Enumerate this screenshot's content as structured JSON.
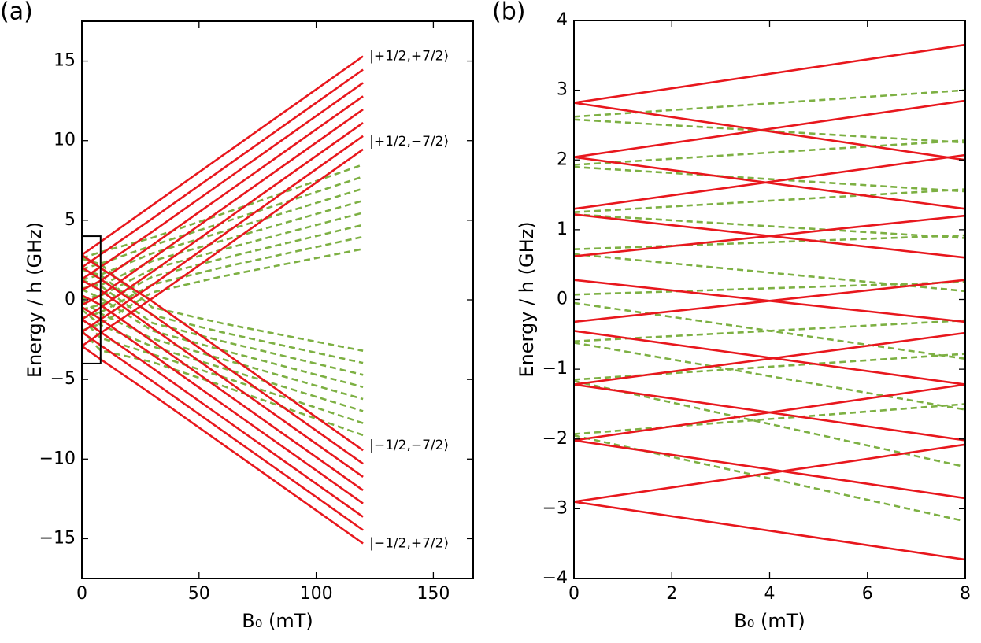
{
  "chart_data": [
    {
      "type": "line",
      "panel_label": "(a)",
      "x_label": "B₀ (mT)",
      "y_label": "Energy / h (GHz)",
      "xlim": [
        0,
        167
      ],
      "ylim": [
        -17.5,
        17.5
      ],
      "xticks": [
        0,
        50,
        100,
        150
      ],
      "yticks": [
        {
          "value": -15,
          "label": "−15"
        },
        {
          "value": -10,
          "label": "−10"
        },
        {
          "value": -5,
          "label": "−5"
        },
        0,
        5,
        10,
        15
      ],
      "inset": {
        "xlim": [
          0,
          8
        ],
        "ylim": [
          -4,
          4
        ]
      },
      "annotations": [
        "|+1/2,+7/2⟩",
        "|+1/2,−7/2⟩",
        "|−1/2,−7/2⟩",
        "|−1/2,+7/2⟩"
      ],
      "x": [
        0,
        8,
        30,
        60,
        120
      ],
      "series": [
        {
          "color": "#7db043",
          "style": "dashed",
          "values": [
            2.62,
            3.0,
            3.9,
            5.4,
            8.5
          ]
        },
        {
          "color": "#7db043",
          "style": "dashed",
          "values": [
            1.93,
            2.28,
            3.41,
            4.84,
            7.74
          ]
        },
        {
          "color": "#7db043",
          "style": "dashed",
          "values": [
            1.25,
            1.58,
            2.92,
            4.28,
            6.99
          ]
        },
        {
          "color": "#7db043",
          "style": "dashed",
          "values": [
            0.72,
            0.92,
            2.43,
            3.72,
            6.23
          ]
        },
        {
          "color": "#7db043",
          "style": "dashed",
          "values": [
            0.07,
            0.25,
            1.94,
            3.16,
            5.47
          ]
        },
        {
          "color": "#7db043",
          "style": "dashed",
          "values": [
            -0.6,
            -0.3,
            1.45,
            2.6,
            4.71
          ]
        },
        {
          "color": "#7db043",
          "style": "dashed",
          "values": [
            -1.15,
            -0.78,
            0.96,
            2.04,
            3.96
          ]
        },
        {
          "color": "#7db043",
          "style": "dashed",
          "values": [
            -1.93,
            -1.5,
            0.47,
            1.48,
            3.2
          ]
        },
        {
          "color": "#7db043",
          "style": "dashed",
          "values": [
            2.58,
            2.25,
            -0.47,
            -1.48,
            -3.2
          ]
        },
        {
          "color": "#7db043",
          "style": "dashed",
          "values": [
            1.9,
            1.55,
            -0.96,
            -2.04,
            -3.96
          ]
        },
        {
          "color": "#7db043",
          "style": "dashed",
          "values": [
            1.22,
            0.88,
            -1.45,
            -2.6,
            -4.71
          ]
        },
        {
          "color": "#7db043",
          "style": "dashed",
          "values": [
            0.65,
            0.12,
            -1.94,
            -3.16,
            -5.47
          ]
        },
        {
          "color": "#7db043",
          "style": "dashed",
          "values": [
            -0.05,
            -0.85,
            -2.43,
            -3.72,
            -6.23
          ]
        },
        {
          "color": "#7db043",
          "style": "dashed",
          "values": [
            -0.62,
            -1.58,
            -2.92,
            -4.28,
            -6.99
          ]
        },
        {
          "color": "#7db043",
          "style": "dashed",
          "values": [
            -1.17,
            -2.4,
            -3.41,
            -4.84,
            -7.74
          ]
        },
        {
          "color": "#7db043",
          "style": "dashed",
          "values": [
            -1.95,
            -3.18,
            -3.9,
            -5.4,
            -8.5
          ]
        },
        {
          "color": "#e8171d",
          "style": "solid",
          "values": [
            2.82,
            3.65,
            5.94,
            9.06,
            15.3
          ]
        },
        {
          "color": "#e8171d",
          "style": "solid",
          "values": [
            2.04,
            2.85,
            5.1,
            8.22,
            14.46
          ]
        },
        {
          "color": "#e8171d",
          "style": "solid",
          "values": [
            1.3,
            2.07,
            4.27,
            7.39,
            13.63
          ]
        },
        {
          "color": "#e8171d",
          "style": "solid",
          "values": [
            0.62,
            1.2,
            3.43,
            6.55,
            12.79
          ]
        },
        {
          "color": "#e8171d",
          "style": "solid",
          "values": [
            -0.32,
            0.28,
            2.6,
            5.72,
            11.96
          ]
        },
        {
          "color": "#e8171d",
          "style": "solid",
          "values": [
            -1.22,
            -0.48,
            1.76,
            4.88,
            11.12
          ]
        },
        {
          "color": "#e8171d",
          "style": "solid",
          "values": [
            -2.02,
            -1.22,
            0.93,
            4.05,
            10.29
          ]
        },
        {
          "color": "#e8171d",
          "style": "solid",
          "values": [
            -2.9,
            -2.08,
            0.09,
            3.21,
            9.45
          ]
        },
        {
          "color": "#e8171d",
          "style": "solid",
          "values": [
            2.82,
            2.0,
            -0.09,
            -3.21,
            -9.45
          ]
        },
        {
          "color": "#e8171d",
          "style": "solid",
          "values": [
            2.04,
            1.3,
            -0.93,
            -4.05,
            -10.29
          ]
        },
        {
          "color": "#e8171d",
          "style": "solid",
          "values": [
            1.22,
            0.6,
            -1.76,
            -4.88,
            -11.12
          ]
        },
        {
          "color": "#e8171d",
          "style": "solid",
          "values": [
            0.28,
            -0.32,
            -2.6,
            -5.72,
            -11.96
          ]
        },
        {
          "color": "#e8171d",
          "style": "solid",
          "values": [
            -0.45,
            -1.22,
            -3.43,
            -6.55,
            -12.79
          ]
        },
        {
          "color": "#e8171d",
          "style": "solid",
          "values": [
            -1.22,
            -2.02,
            -4.27,
            -7.39,
            -13.63
          ]
        },
        {
          "color": "#e8171d",
          "style": "solid",
          "values": [
            -2.02,
            -2.85,
            -5.1,
            -8.22,
            -14.46
          ]
        },
        {
          "color": "#e8171d",
          "style": "solid",
          "values": [
            -2.9,
            -3.73,
            -5.94,
            -9.06,
            -15.3
          ]
        }
      ]
    },
    {
      "type": "line",
      "panel_label": "(b)",
      "x_label": "B₀ (mT)",
      "y_label": "Energy / h (GHz)",
      "xlim": [
        0,
        8
      ],
      "ylim": [
        -4,
        4
      ],
      "xticks": [
        0,
        2,
        4,
        6,
        8
      ],
      "yticks": [
        {
          "value": -4,
          "label": "−4"
        },
        {
          "value": -3,
          "label": "−3"
        },
        {
          "value": -2,
          "label": "−2"
        },
        {
          "value": -1,
          "label": "−1"
        },
        0,
        1,
        2,
        3,
        4
      ],
      "x": [
        0,
        8
      ],
      "series": [
        {
          "color": "#7db043",
          "style": "dashed",
          "values": [
            2.62,
            3.0
          ]
        },
        {
          "color": "#7db043",
          "style": "dashed",
          "values": [
            1.93,
            2.28
          ]
        },
        {
          "color": "#7db043",
          "style": "dashed",
          "values": [
            1.25,
            1.58
          ]
        },
        {
          "color": "#7db043",
          "style": "dashed",
          "values": [
            0.72,
            0.92
          ]
        },
        {
          "color": "#7db043",
          "style": "dashed",
          "values": [
            0.07,
            0.25
          ]
        },
        {
          "color": "#7db043",
          "style": "dashed",
          "values": [
            -0.6,
            -0.3
          ]
        },
        {
          "color": "#7db043",
          "style": "dashed",
          "values": [
            -1.15,
            -0.78
          ]
        },
        {
          "color": "#7db043",
          "style": "dashed",
          "values": [
            -1.93,
            -1.5
          ]
        },
        {
          "color": "#7db043",
          "style": "dashed",
          "values": [
            2.58,
            2.25
          ]
        },
        {
          "color": "#7db043",
          "style": "dashed",
          "values": [
            1.9,
            1.55
          ]
        },
        {
          "color": "#7db043",
          "style": "dashed",
          "values": [
            1.22,
            0.88
          ]
        },
        {
          "color": "#7db043",
          "style": "dashed",
          "values": [
            0.65,
            0.12
          ]
        },
        {
          "color": "#7db043",
          "style": "dashed",
          "values": [
            -0.05,
            -0.85
          ]
        },
        {
          "color": "#7db043",
          "style": "dashed",
          "values": [
            -0.62,
            -1.58
          ]
        },
        {
          "color": "#7db043",
          "style": "dashed",
          "values": [
            -1.17,
            -2.4
          ]
        },
        {
          "color": "#7db043",
          "style": "dashed",
          "values": [
            -1.95,
            -3.18
          ]
        },
        {
          "color": "#e8171d",
          "style": "solid",
          "values": [
            2.82,
            3.65
          ]
        },
        {
          "color": "#e8171d",
          "style": "solid",
          "values": [
            2.04,
            2.85
          ]
        },
        {
          "color": "#e8171d",
          "style": "solid",
          "values": [
            1.3,
            2.07
          ]
        },
        {
          "color": "#e8171d",
          "style": "solid",
          "values": [
            0.62,
            1.2
          ]
        },
        {
          "color": "#e8171d",
          "style": "solid",
          "values": [
            -0.32,
            0.28
          ]
        },
        {
          "color": "#e8171d",
          "style": "solid",
          "values": [
            -1.22,
            -0.48
          ]
        },
        {
          "color": "#e8171d",
          "style": "solid",
          "values": [
            -2.02,
            -1.22
          ]
        },
        {
          "color": "#e8171d",
          "style": "solid",
          "values": [
            -2.9,
            -2.08
          ]
        },
        {
          "color": "#e8171d",
          "style": "solid",
          "values": [
            2.82,
            2.0
          ]
        },
        {
          "color": "#e8171d",
          "style": "solid",
          "values": [
            2.04,
            1.3
          ]
        },
        {
          "color": "#e8171d",
          "style": "solid",
          "values": [
            1.22,
            0.6
          ]
        },
        {
          "color": "#e8171d",
          "style": "solid",
          "values": [
            0.28,
            -0.32
          ]
        },
        {
          "color": "#e8171d",
          "style": "solid",
          "values": [
            -0.45,
            -1.22
          ]
        },
        {
          "color": "#e8171d",
          "style": "solid",
          "values": [
            -1.22,
            -2.02
          ]
        },
        {
          "color": "#e8171d",
          "style": "solid",
          "values": [
            -2.02,
            -2.85
          ]
        },
        {
          "color": "#e8171d",
          "style": "solid",
          "values": [
            -2.9,
            -3.73
          ]
        }
      ]
    }
  ]
}
